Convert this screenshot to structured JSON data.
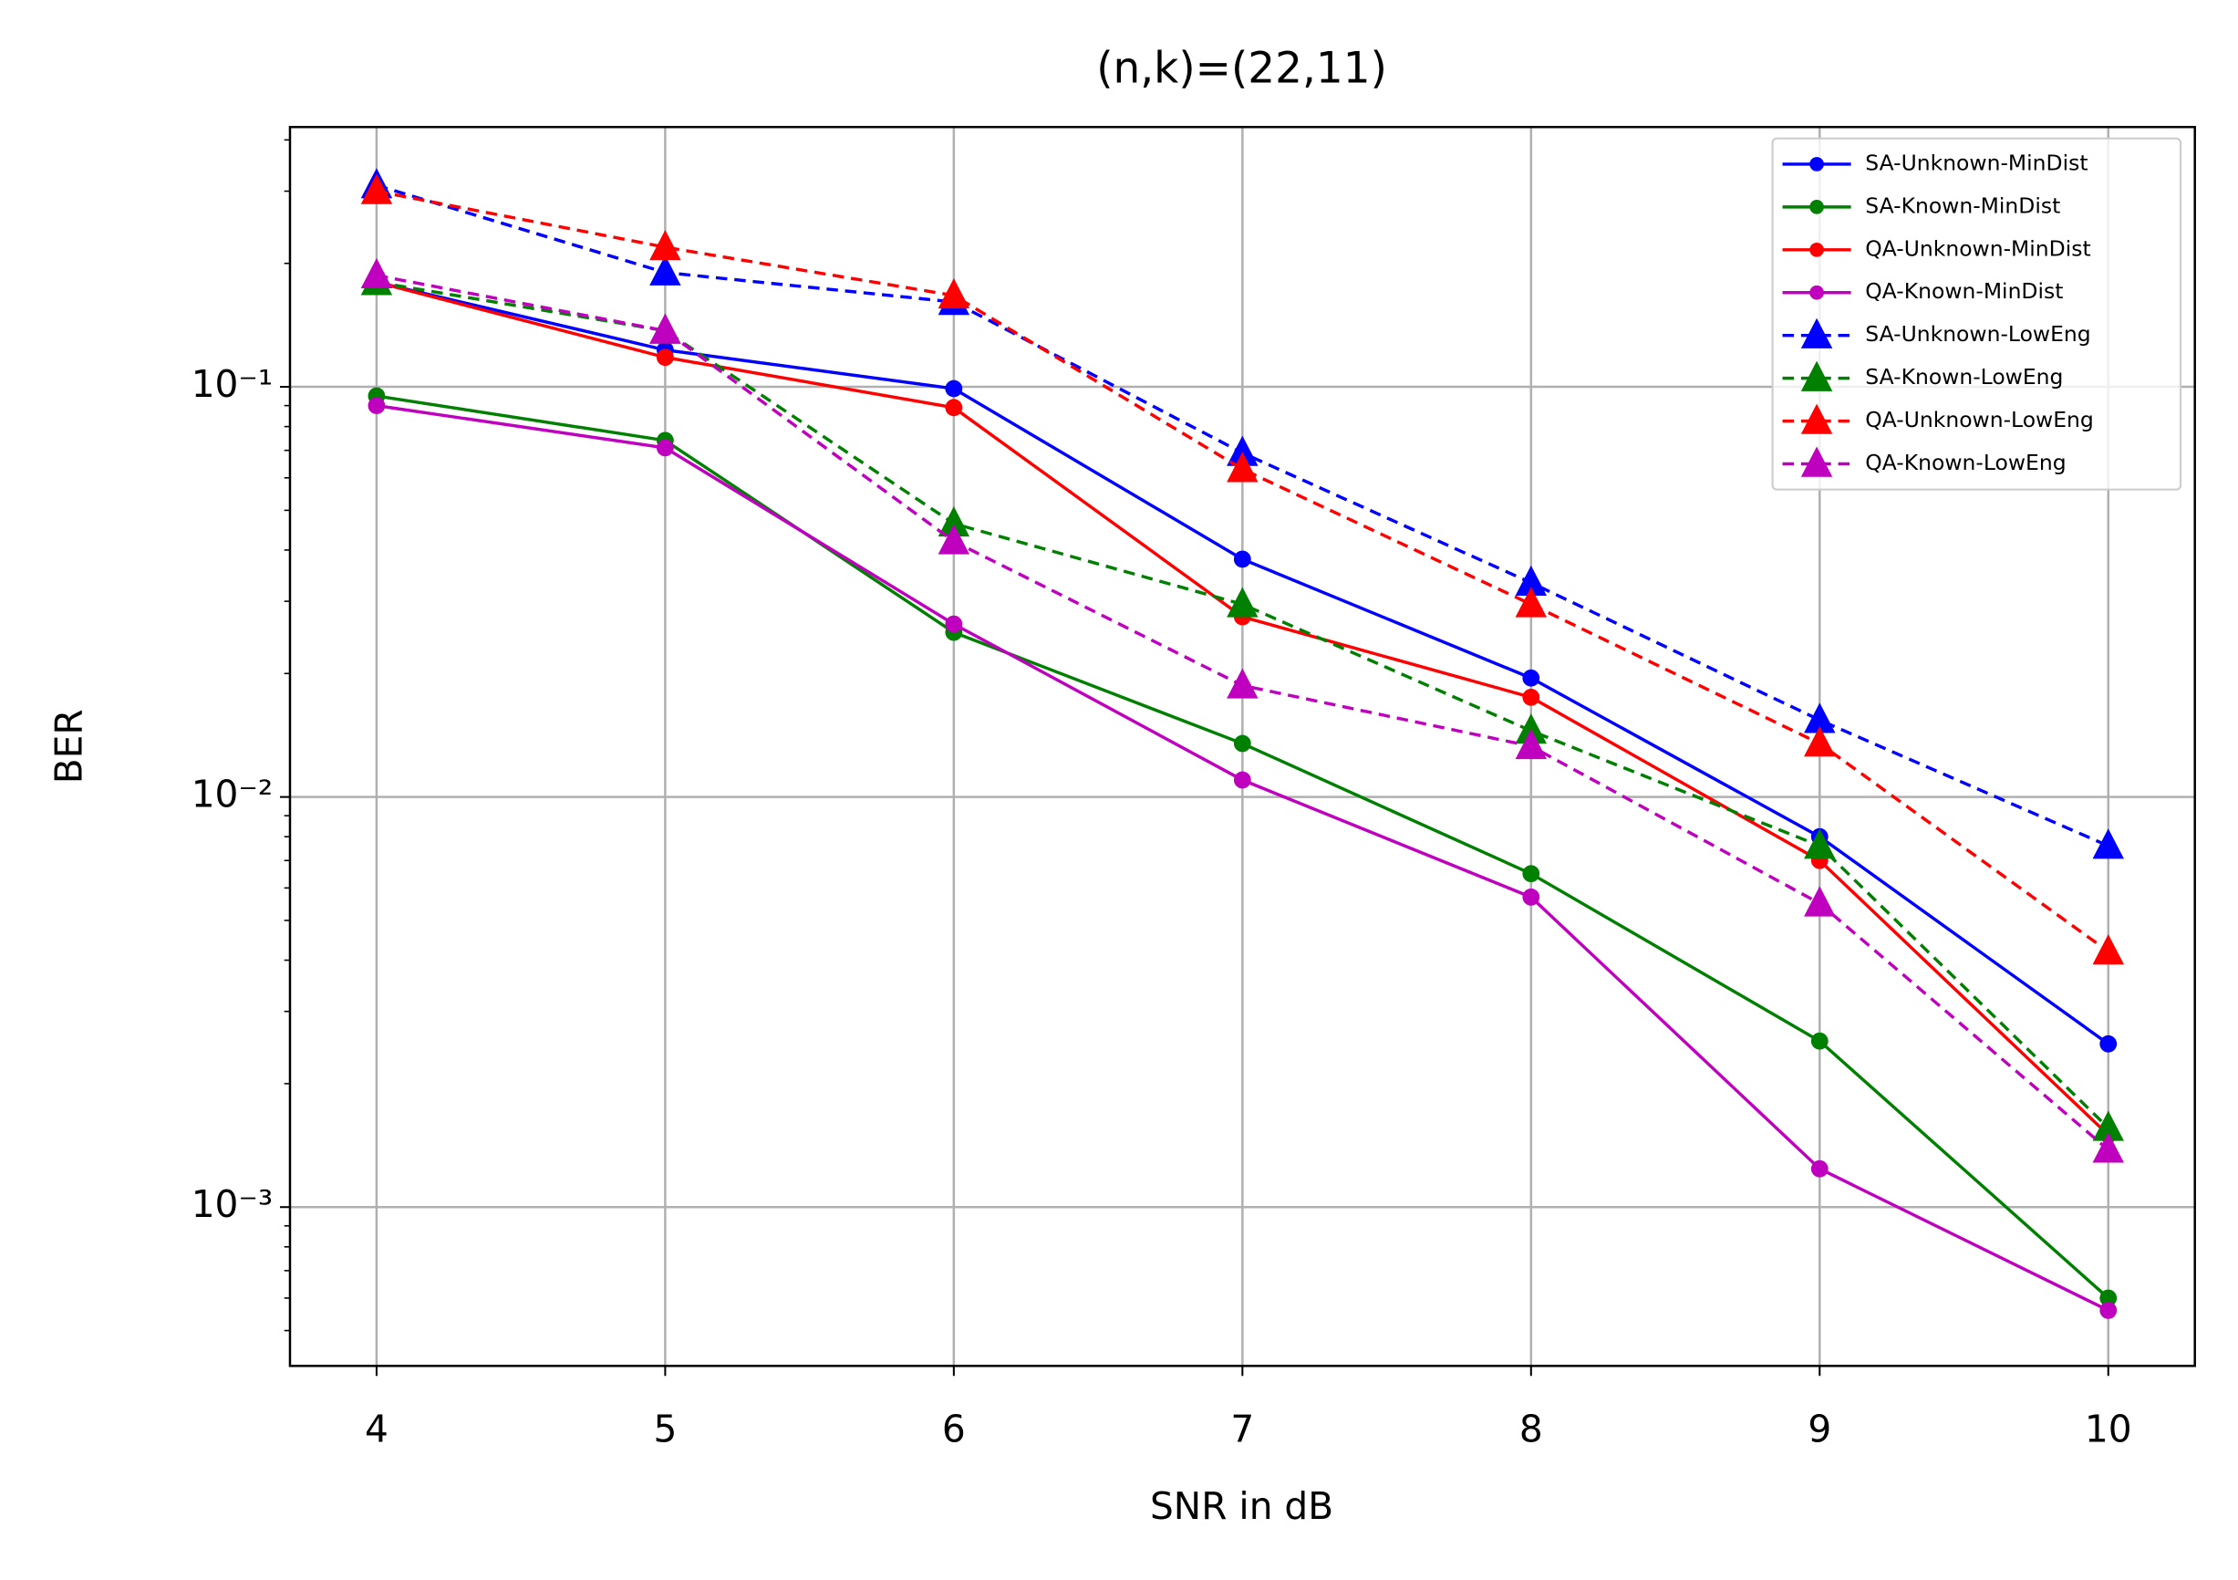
{
  "chart_data": {
    "type": "line",
    "title": "(n,k)=(22,11)",
    "xlabel": "SNR in dB",
    "ylabel": "BER",
    "x": [
      4,
      5,
      6,
      7,
      8,
      9,
      10
    ],
    "xlim": [
      3.7,
      10.3
    ],
    "xticks": [
      4,
      5,
      6,
      7,
      8,
      9,
      10
    ],
    "ylim": [
      0.00041,
      0.43
    ],
    "yscale": "log",
    "yticks": [
      {
        "value": 0.001,
        "label": "10⁻³"
      },
      {
        "value": 0.01,
        "label": "10⁻²"
      },
      {
        "value": 0.1,
        "label": "10⁻¹"
      }
    ],
    "yminorticks": [
      0.0005,
      0.0006,
      0.0007,
      0.0008,
      0.0009,
      0.002,
      0.003,
      0.004,
      0.005,
      0.006,
      0.007,
      0.008,
      0.009,
      0.02,
      0.03,
      0.04,
      0.05,
      0.06,
      0.07,
      0.08,
      0.09,
      0.2,
      0.3,
      0.4
    ],
    "grid": true,
    "legend": "upper right",
    "series": [
      {
        "name": "SA-Unknown-MinDist",
        "color": "#0000ff",
        "linestyle": "solid",
        "marker": "circle",
        "values": [
          0.18,
          0.123,
          0.099,
          0.038,
          0.0195,
          0.008,
          0.0025
        ]
      },
      {
        "name": "SA-Known-MinDist",
        "color": "#008000",
        "linestyle": "solid",
        "marker": "circle",
        "values": [
          0.095,
          0.074,
          0.0252,
          0.0135,
          0.0065,
          0.00254,
          0.0006
        ]
      },
      {
        "name": "QA-Unknown-MinDist",
        "color": "#ff0000",
        "linestyle": "solid",
        "marker": "circle",
        "values": [
          0.18,
          0.118,
          0.089,
          0.0275,
          0.0175,
          0.007,
          0.0015
        ]
      },
      {
        "name": "QA-Known-MinDist",
        "color": "#bf00bf",
        "linestyle": "solid",
        "marker": "circle",
        "values": [
          0.09,
          0.071,
          0.0264,
          0.011,
          0.0057,
          0.00124,
          0.00056
        ]
      },
      {
        "name": "SA-Unknown-LowEng",
        "color": "#0000ff",
        "linestyle": "dashed",
        "marker": "triangle",
        "values": [
          0.31,
          0.19,
          0.161,
          0.069,
          0.0333,
          0.0154,
          0.0076
        ]
      },
      {
        "name": "SA-Known-LowEng",
        "color": "#008000",
        "linestyle": "dashed",
        "marker": "triangle",
        "values": [
          0.18,
          0.137,
          0.0464,
          0.0295,
          0.0145,
          0.0076,
          0.00156
        ]
      },
      {
        "name": "QA-Unknown-LowEng",
        "color": "#ff0000",
        "linestyle": "dashed",
        "marker": "triangle",
        "values": [
          0.3,
          0.219,
          0.167,
          0.063,
          0.0295,
          0.0135,
          0.0042
        ]
      },
      {
        "name": "QA-Known-LowEng",
        "color": "#bf00bf",
        "linestyle": "dashed",
        "marker": "triangle",
        "values": [
          0.187,
          0.137,
          0.042,
          0.0187,
          0.0133,
          0.0055,
          0.00138
        ]
      }
    ]
  }
}
